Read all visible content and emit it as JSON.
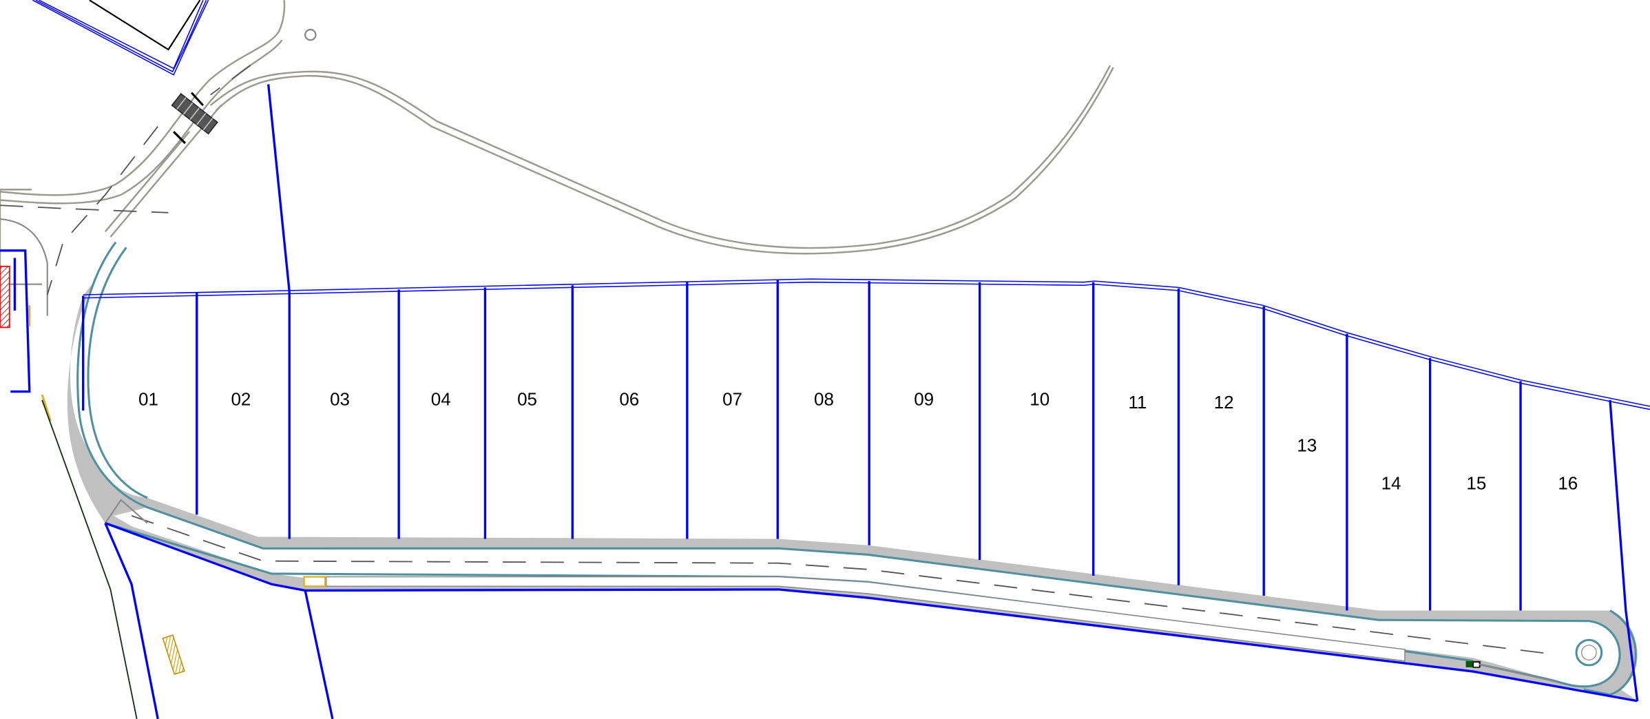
{
  "plan": {
    "colors": {
      "lot_boundary": "#0000ff",
      "road_fill": "#c0c0c0",
      "curb": "#4e8fa0",
      "existing_road": "#9a9a90",
      "hatch_building": "#ff0000",
      "bin_store": "#e0b020"
    },
    "lots": [
      {
        "label": "01"
      },
      {
        "label": "02"
      },
      {
        "label": "03"
      },
      {
        "label": "04"
      },
      {
        "label": "05"
      },
      {
        "label": "06"
      },
      {
        "label": "07"
      },
      {
        "label": "08"
      },
      {
        "label": "09"
      },
      {
        "label": "10"
      },
      {
        "label": "11"
      },
      {
        "label": "12"
      },
      {
        "label": "13"
      },
      {
        "label": "14"
      },
      {
        "label": "15"
      },
      {
        "label": "16"
      }
    ]
  }
}
